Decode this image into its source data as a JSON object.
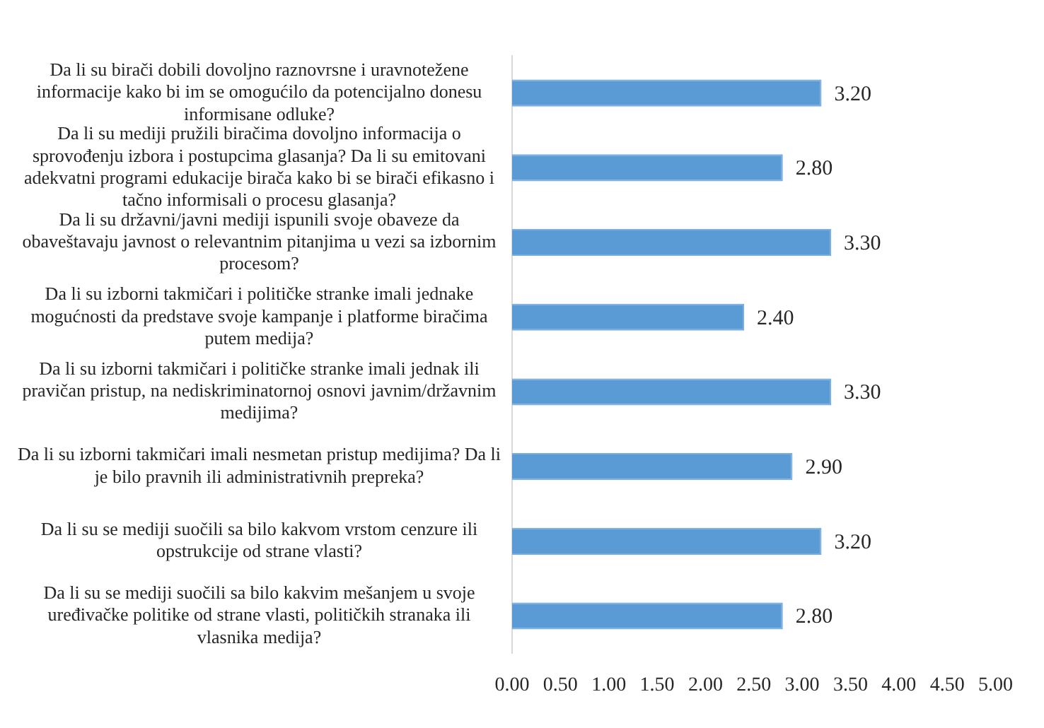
{
  "chart_data": {
    "type": "bar",
    "orientation": "horizontal",
    "categories": [
      "Da li su birači dobili dovoljno raznovrsne i uravnotežene informacije kako bi im se omogućilo da potencijalno donesu informisane odluke?",
      "Da li su mediji pružili biračima dovoljno informacija o sprovođenju izbora i postupcima glasanja? Da li su emitovani adekvatni programi edukacije birača kako bi se birači efikasno i tačno informisali o procesu glasanja?",
      "Da li su državni/javni mediji ispunili svoje obaveze da obaveštavaju javnost o relevantnim pitanjima u vezi sa izbornim procesom?",
      "Da li su izborni takmičari i političke stranke imali jednake mogućnosti da predstave svoje kampanje i platforme biračima putem medija?",
      "Da li su izborni takmičari i političke stranke imali jednak ili pravičan pristup, na nediskriminatornoj osnovi javnim/državnim medijima?",
      "Da li su izborni takmičari imali nesmetan pristup medijima? Da li je bilo pravnih ili administrativnih prepreka?",
      "Da li su se mediji suočili sa bilo kakvom vrstom cenzure ili opstrukcije od strane vlasti?",
      "Da li su se mediji suočili sa bilo kakvim mešanjem u svoje uređivačke politike od strane vlasti, političkih stranaka ili vlasnika medija?"
    ],
    "values": [
      3.2,
      2.8,
      3.3,
      2.4,
      3.3,
      2.9,
      3.2,
      2.8
    ],
    "value_labels": [
      "3.20",
      "2.80",
      "3.30",
      "2.40",
      "3.30",
      "2.90",
      "3.20",
      "2.80"
    ],
    "color": "#5b9bd5",
    "xlim": [
      0,
      5
    ],
    "xticks": [
      {
        "value": 0,
        "label": "0.00"
      },
      {
        "value": 0.5,
        "label": "0.50"
      },
      {
        "value": 1,
        "label": "1.00"
      },
      {
        "value": 1.5,
        "label": "1.50"
      },
      {
        "value": 2,
        "label": "2.00"
      },
      {
        "value": 2.5,
        "label": "2.50"
      },
      {
        "value": 3,
        "label": "3.00"
      },
      {
        "value": 3.5,
        "label": "3.50"
      },
      {
        "value": 4,
        "label": "4.00"
      },
      {
        "value": 4.5,
        "label": "4.50"
      },
      {
        "value": 5,
        "label": "5.00"
      }
    ],
    "grid": false,
    "legend": false
  }
}
